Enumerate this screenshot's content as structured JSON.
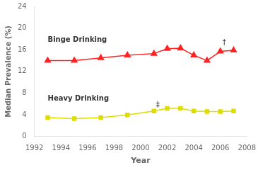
{
  "chart_data": {
    "type": "line",
    "x": [
      1993,
      1995,
      1997,
      1999,
      2001,
      2002,
      2003,
      2004,
      2005,
      2006,
      2007
    ],
    "series": [
      {
        "color": "#FF2222",
        "marker": "triangle",
        "values": [
          14.0,
          14.0,
          14.5,
          15.0,
          15.3,
          16.2,
          16.3,
          15.0,
          14.0,
          15.7,
          15.9
        ]
      },
      {
        "color": "#DDDD00",
        "marker": "square",
        "values": [
          3.5,
          3.3,
          3.5,
          4.0,
          4.7,
          5.2,
          5.2,
          4.7,
          4.6,
          4.6,
          4.7
        ]
      }
    ],
    "xlabel": "Year",
    "ylabel": "Median Prevalence (%)",
    "xlim": [
      1992,
      2008
    ],
    "xticks": [
      1992,
      1994,
      1996,
      1998,
      2000,
      2002,
      2004,
      2006,
      2008
    ],
    "ylim": [
      0,
      24
    ],
    "yticks": [
      0,
      4,
      8,
      12,
      16,
      20,
      24
    ],
    "grid": false,
    "annotations": [
      {
        "text": "Binge Drinking",
        "x": 1993.0,
        "y": 17.8
      },
      {
        "text": "Heavy Drinking",
        "x": 1993.0,
        "y": 7.0
      },
      {
        "text": "†",
        "x": 2006.15,
        "y": 16.6
      },
      {
        "text": "‡",
        "x": 2001.15,
        "y": 5.15
      }
    ]
  }
}
